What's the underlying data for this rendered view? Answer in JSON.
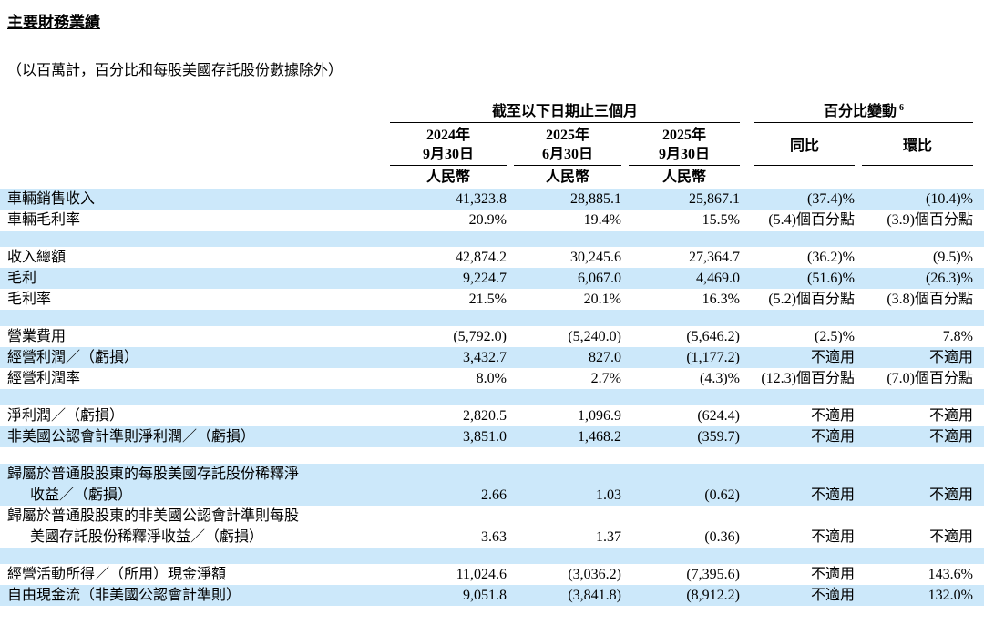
{
  "page": {
    "title": "主要財務業績",
    "subtitle": "（以百萬計，百分比和每股美國存託股份數據除外）"
  },
  "colors": {
    "highlight_blue": "#cce8fa",
    "rule_black": "#000000",
    "text": "#000000"
  },
  "table": {
    "header": {
      "group1": "截至以下日期止三個月",
      "group2": "百分比變動",
      "group2_sup": "6",
      "date_cols": [
        {
          "year": "2024年",
          "day": "9月30日",
          "currency": "人民幣"
        },
        {
          "year": "2025年",
          "day": "6月30日",
          "currency": "人民幣"
        },
        {
          "year": "2025年",
          "day": "9月30日",
          "currency": "人民幣"
        }
      ],
      "ratio_cols": [
        "同比",
        "環比"
      ]
    },
    "rows": [
      {
        "label": "車輛銷售收入",
        "values": [
          "41,323.8",
          "28,885.1",
          "25,867.1",
          "(37.4)%",
          "(10.4)%"
        ],
        "hl": true
      },
      {
        "label": "車輛毛利率",
        "values": [
          "20.9%",
          "19.4%",
          "15.5%",
          "(5.4)個百分點",
          "(3.9)個百分點"
        ],
        "hl": false
      },
      {
        "blank": true,
        "hl": true
      },
      {
        "label": "收入總額",
        "values": [
          "42,874.2",
          "30,245.6",
          "27,364.7",
          "(36.2)%",
          "(9.5)%"
        ],
        "hl": false
      },
      {
        "label": "毛利",
        "values": [
          "9,224.7",
          "6,067.0",
          "4,469.0",
          "(51.6)%",
          "(26.3)%"
        ],
        "hl": true
      },
      {
        "label": "毛利率",
        "values": [
          "21.5%",
          "20.1%",
          "16.3%",
          "(5.2)個百分點",
          "(3.8)個百分點"
        ],
        "hl": false
      },
      {
        "blank": true,
        "hl": true
      },
      {
        "label": "營業費用",
        "values": [
          "(5,792.0)",
          "(5,240.0)",
          "(5,646.2)",
          "(2.5)%",
          "7.8%"
        ],
        "hl": false
      },
      {
        "label": "經營利潤／（虧損）",
        "values": [
          "3,432.7",
          "827.0",
          "(1,177.2)",
          "不適用",
          "不適用"
        ],
        "hl": true
      },
      {
        "label": "經營利潤率",
        "values": [
          "8.0%",
          "2.7%",
          "(4.3)%",
          "(12.3)個百分點",
          "(7.0)個百分點"
        ],
        "hl": false
      },
      {
        "blank": true,
        "hl": true
      },
      {
        "label": "淨利潤／（虧損）",
        "values": [
          "2,820.5",
          "1,096.9",
          "(624.4)",
          "不適用",
          "不適用"
        ],
        "hl": false
      },
      {
        "label": "非美國公認會計準則淨利潤／（虧損）",
        "values": [
          "3,851.0",
          "1,468.2",
          "(359.7)",
          "不適用",
          "不適用"
        ],
        "hl": true
      },
      {
        "blank": true,
        "hl": false
      },
      {
        "label_lines": [
          "歸屬於普通股股東的每股美國存託股份稀釋淨",
          "收益／（虧損）"
        ],
        "values": [
          "2.66",
          "1.03",
          "(0.62)",
          "不適用",
          "不適用"
        ],
        "hl": true
      },
      {
        "label_lines": [
          "歸屬於普通股股東的非美國公認會計準則每股",
          "美國存託股份稀釋淨收益／（虧損）"
        ],
        "values": [
          "3.63",
          "1.37",
          "(0.36)",
          "不適用",
          "不適用"
        ],
        "hl": false
      },
      {
        "blank": true,
        "hl": true
      },
      {
        "label": "經營活動所得／（所用）現金淨額",
        "values": [
          "11,024.6",
          "(3,036.2)",
          "(7,395.6)",
          "不適用",
          "143.6%"
        ],
        "hl": false
      },
      {
        "label": "自由現金流（非美國公認會計準則）",
        "values": [
          "9,051.8",
          "(3,841.8)",
          "(8,912.2)",
          "不適用",
          "132.0%"
        ],
        "hl": true
      }
    ]
  }
}
